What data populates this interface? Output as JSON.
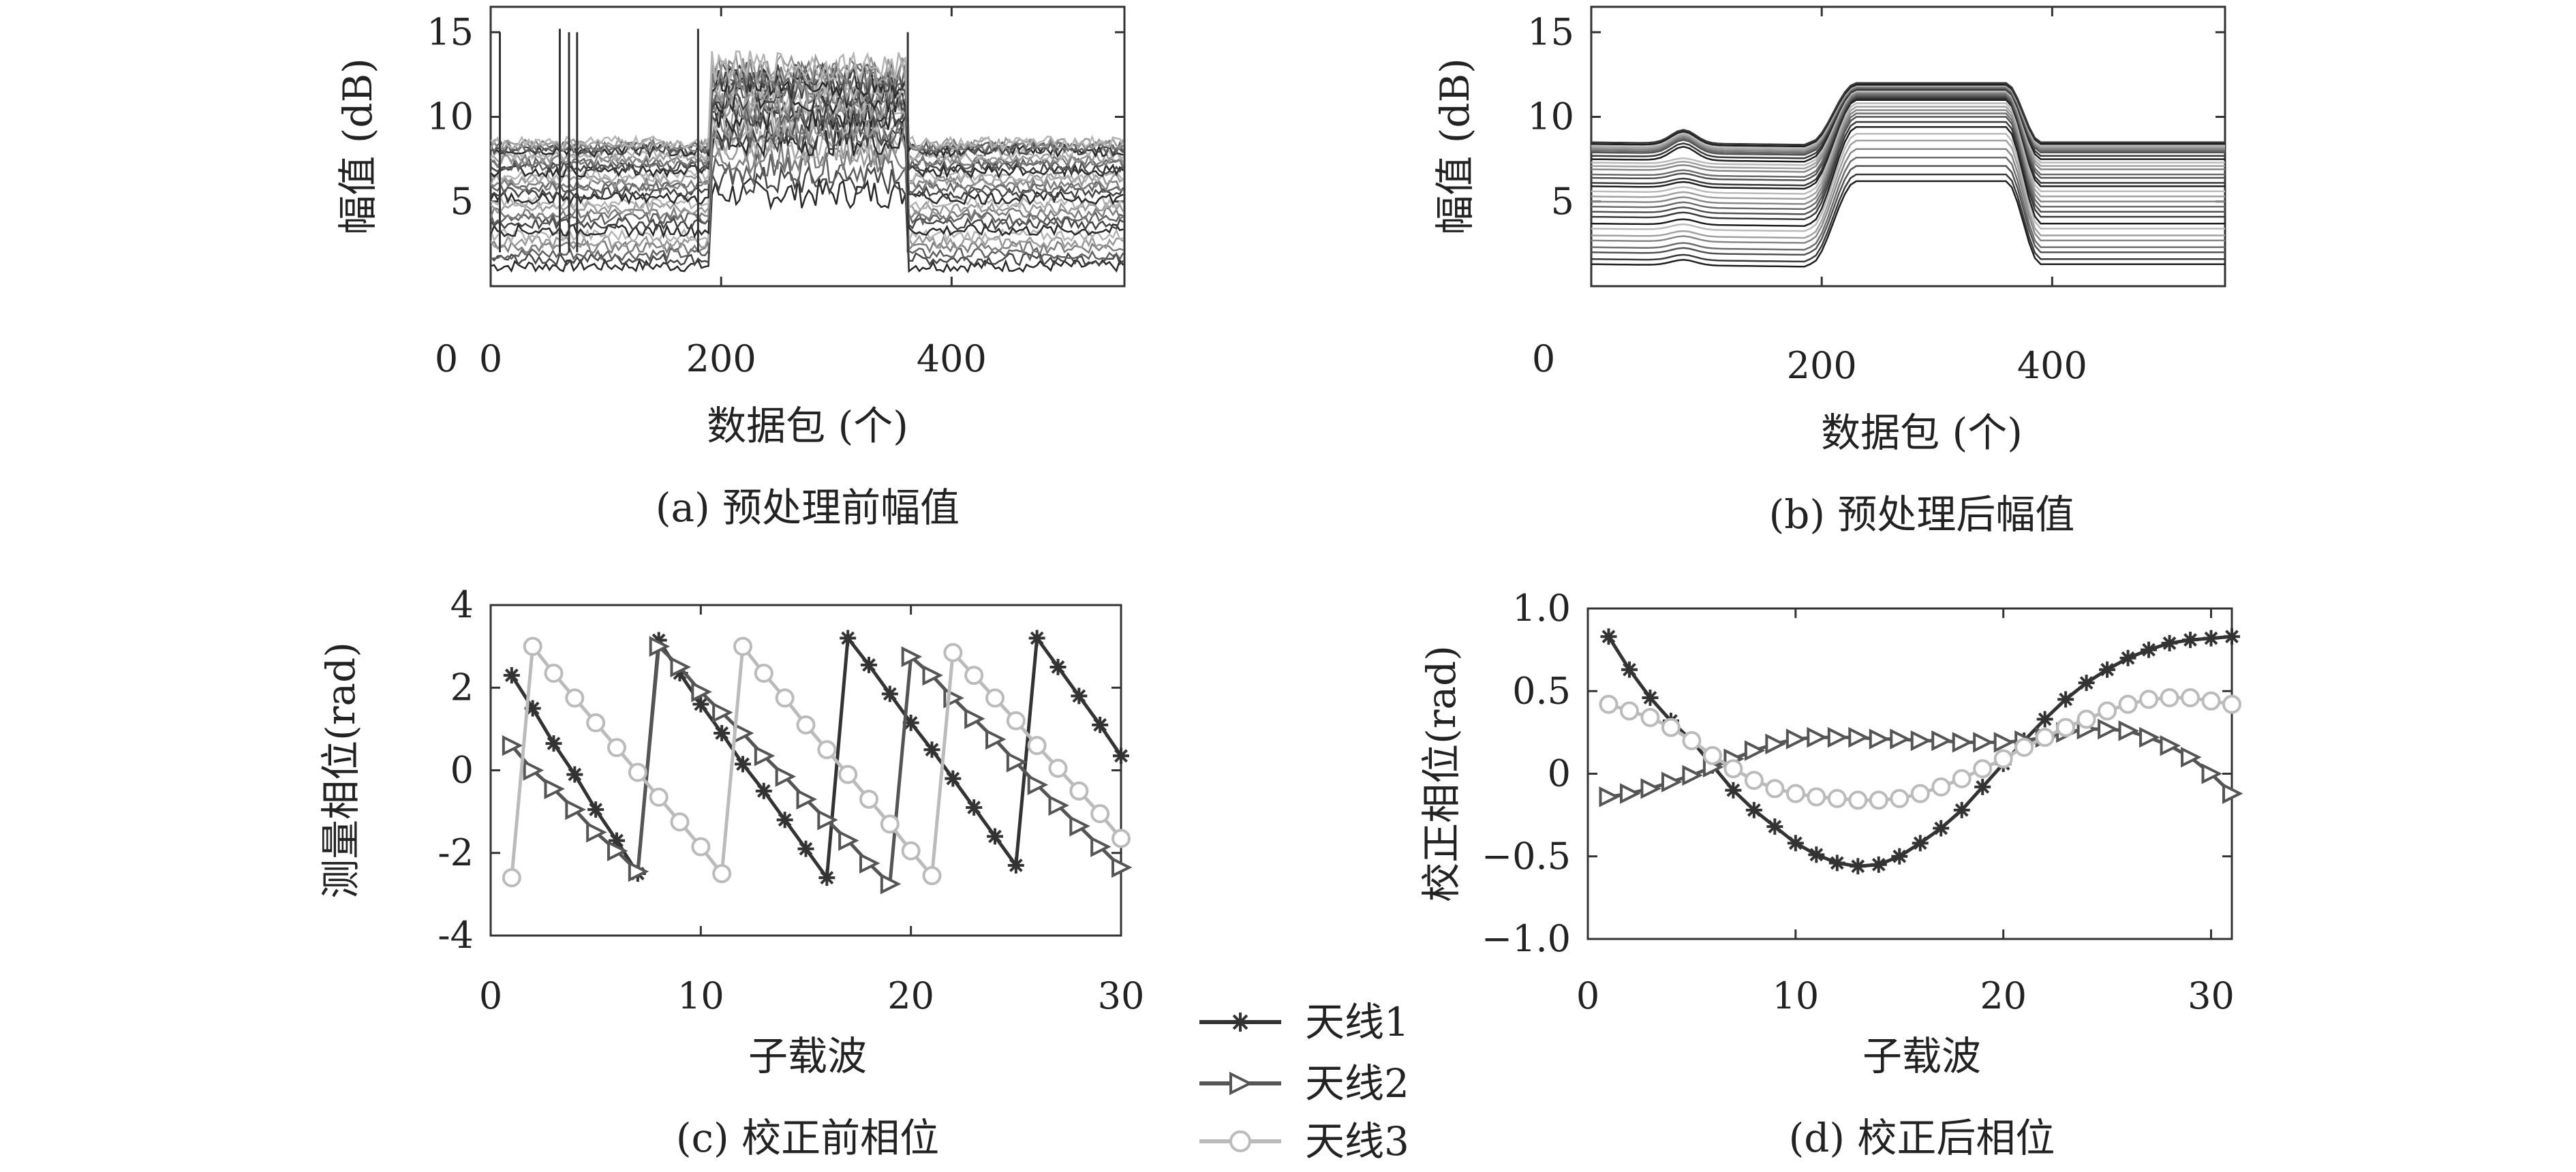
{
  "chart_data": [
    {
      "type": "line",
      "id": "a",
      "caption": "(a) 预处理前幅值",
      "xlabel": "数据包 (个)",
      "ylabel": "幅值 (dB)",
      "xlim": [
        0,
        550
      ],
      "ylim": [
        0,
        16.5
      ],
      "xticks": [
        0,
        200,
        400
      ],
      "yticks": [
        5,
        10,
        15
      ],
      "x_zero_label": "0",
      "segments": [
        {
          "x_range": [
            0,
            190
          ],
          "level": "low"
        },
        {
          "x_range": [
            190,
            362
          ],
          "level": "high"
        },
        {
          "x_range": [
            362,
            550
          ],
          "level": "low"
        }
      ],
      "series_count": 30,
      "low_levels_db": [
        1.2,
        1.6,
        1.9,
        2.3,
        2.6,
        3.0,
        3.3,
        3.7,
        4.0,
        4.3,
        4.6,
        4.9,
        5.2,
        5.5,
        5.8,
        6.0,
        6.3,
        6.5,
        6.8,
        7.0,
        7.2,
        7.4,
        7.6,
        7.8,
        8.0,
        8.1,
        8.2,
        8.3,
        8.4,
        8.5
      ],
      "high_levels_db": [
        5.5,
        6.2,
        7.0,
        7.6,
        8.0,
        8.3,
        8.6,
        8.9,
        9.2,
        9.4,
        9.6,
        9.8,
        10.0,
        10.2,
        10.4,
        10.6,
        10.8,
        11.0,
        11.1,
        11.3,
        11.5,
        11.6,
        11.8,
        11.9,
        12.0,
        12.2,
        12.4,
        12.6,
        12.8,
        13.0
      ],
      "spikes": [
        {
          "x": 8,
          "y": 15.0
        },
        {
          "x": 60,
          "y": 15.2
        },
        {
          "x": 68,
          "y": 15.0
        },
        {
          "x": 75,
          "y": 15.0
        },
        {
          "x": 180,
          "y": 15.2
        },
        {
          "x": 362,
          "y": 15.0
        }
      ],
      "grid": false
    },
    {
      "type": "line",
      "id": "b",
      "caption": "(b) 预处理后幅值",
      "xlabel": "数据包 (个)",
      "ylabel": "幅值 (dB)",
      "xlim": [
        0,
        550
      ],
      "ylim": [
        0,
        16.5
      ],
      "xticks": [
        200,
        400
      ],
      "yticks": [
        5,
        10,
        15
      ],
      "y_zero_label": "0",
      "transitions": [
        [
          190,
          230
        ],
        [
          360,
          390
        ]
      ],
      "bump": {
        "x": 80,
        "height_db": 0.8
      },
      "series_count": 30,
      "low_levels_db": [
        1.3,
        1.6,
        2.0,
        2.3,
        2.7,
        3.0,
        3.4,
        3.7,
        4.1,
        4.4,
        4.7,
        5.0,
        5.3,
        5.6,
        5.9,
        6.1,
        6.4,
        6.6,
        6.9,
        7.1,
        7.3,
        7.5,
        7.7,
        7.9,
        8.0,
        8.1,
        8.2,
        8.3,
        8.4,
        8.5
      ],
      "high_levels_db": [
        6.2,
        6.6,
        7.1,
        7.6,
        8.1,
        8.6,
        9.0,
        9.4,
        9.7,
        10.0,
        10.2,
        10.4,
        10.6,
        10.8,
        11.0,
        11.1,
        11.2,
        11.3,
        11.4,
        11.5,
        11.5,
        11.6,
        11.6,
        11.7,
        11.7,
        11.8,
        11.8,
        11.9,
        11.9,
        12.0
      ],
      "grid": false
    },
    {
      "type": "line",
      "id": "c",
      "caption": "(c) 校正前相位",
      "xlabel": "子载波",
      "ylabel": "测量相位(rad)",
      "xlim": [
        0,
        30
      ],
      "ylim": [
        -4,
        4
      ],
      "xticks": [
        0,
        10,
        20,
        30
      ],
      "yticks": [
        -4,
        -2,
        0,
        2,
        4
      ],
      "grid": false,
      "series": [
        {
          "name": "天线1",
          "marker": "asterisk",
          "color": "#333333",
          "x": [
            1,
            2,
            3,
            4,
            5,
            6,
            7,
            8,
            9,
            10,
            11,
            12,
            13,
            14,
            15,
            16,
            17,
            18,
            19,
            20,
            21,
            22,
            23,
            24,
            25,
            26,
            27,
            28,
            29,
            30
          ],
          "y": [
            2.3,
            1.5,
            0.65,
            -0.1,
            -0.95,
            -1.7,
            -2.5,
            3.15,
            2.35,
            1.6,
            0.9,
            0.15,
            -0.5,
            -1.2,
            -1.9,
            -2.6,
            3.2,
            2.55,
            1.85,
            1.15,
            0.5,
            -0.2,
            -0.9,
            -1.6,
            -2.3,
            3.2,
            2.5,
            1.8,
            1.1,
            0.35
          ]
        },
        {
          "name": "天线2",
          "marker": "triangle-right",
          "color": "#555555",
          "x": [
            1,
            2,
            3,
            4,
            5,
            6,
            7,
            8,
            9,
            10,
            11,
            12,
            13,
            14,
            15,
            16,
            17,
            18,
            19,
            20,
            21,
            22,
            23,
            24,
            25,
            26,
            27,
            28,
            29,
            30
          ],
          "y": [
            0.6,
            0.0,
            -0.45,
            -0.95,
            -1.5,
            -1.95,
            -2.45,
            3.0,
            2.5,
            1.9,
            1.4,
            0.9,
            0.35,
            -0.15,
            -0.7,
            -1.2,
            -1.7,
            -2.25,
            -2.75,
            2.75,
            2.3,
            1.75,
            1.25,
            0.75,
            0.2,
            -0.35,
            -0.85,
            -1.35,
            -1.85,
            -2.35
          ]
        },
        {
          "name": "天线3",
          "marker": "circle",
          "color": "#bbbbbb",
          "x": [
            1,
            2,
            3,
            4,
            5,
            6,
            7,
            8,
            9,
            10,
            11,
            12,
            13,
            14,
            15,
            16,
            17,
            18,
            19,
            20,
            21,
            22,
            23,
            24,
            25,
            26,
            27,
            28,
            29,
            30
          ],
          "y": [
            -2.6,
            3.0,
            2.35,
            1.75,
            1.15,
            0.55,
            -0.05,
            -0.65,
            -1.25,
            -1.85,
            -2.5,
            3.0,
            2.35,
            1.75,
            1.1,
            0.5,
            -0.1,
            -0.7,
            -1.3,
            -1.95,
            -2.55,
            2.85,
            2.3,
            1.75,
            1.2,
            0.6,
            0.05,
            -0.5,
            -1.05,
            -1.65
          ]
        }
      ]
    },
    {
      "type": "line",
      "id": "d",
      "caption": "(d) 校正后相位",
      "xlabel": "子载波",
      "ylabel": "校正相位(rad)",
      "xlim": [
        0,
        31
      ],
      "ylim": [
        -1.0,
        1.0
      ],
      "xticks": [
        0,
        10,
        20,
        30
      ],
      "yticks": [
        -1.0,
        -0.5,
        0,
        0.5,
        1.0
      ],
      "ytick_labels": [
        "−1.0",
        "−0.5",
        "0",
        "0.5",
        "1.0"
      ],
      "grid": false,
      "series": [
        {
          "name": "天线1",
          "marker": "asterisk",
          "color": "#333333",
          "x": [
            1,
            2,
            3,
            4,
            5,
            6,
            7,
            8,
            9,
            10,
            11,
            12,
            13,
            14,
            15,
            16,
            17,
            18,
            19,
            20,
            21,
            22,
            23,
            24,
            25,
            26,
            27,
            28,
            29,
            30,
            31
          ],
          "y": [
            0.83,
            0.63,
            0.46,
            0.32,
            0.2,
            0.05,
            -0.1,
            -0.22,
            -0.32,
            -0.42,
            -0.49,
            -0.54,
            -0.56,
            -0.55,
            -0.5,
            -0.42,
            -0.33,
            -0.22,
            -0.08,
            0.06,
            0.2,
            0.33,
            0.45,
            0.55,
            0.63,
            0.7,
            0.75,
            0.79,
            0.81,
            0.82,
            0.83
          ]
        },
        {
          "name": "天线2",
          "marker": "triangle-right",
          "color": "#555555",
          "x": [
            1,
            2,
            3,
            4,
            5,
            6,
            7,
            8,
            9,
            10,
            11,
            12,
            13,
            14,
            15,
            16,
            17,
            18,
            19,
            20,
            21,
            22,
            23,
            24,
            25,
            26,
            27,
            28,
            29,
            30,
            31
          ],
          "y": [
            -0.14,
            -0.12,
            -0.09,
            -0.05,
            -0.01,
            0.04,
            0.09,
            0.14,
            0.18,
            0.21,
            0.22,
            0.22,
            0.22,
            0.21,
            0.21,
            0.2,
            0.2,
            0.19,
            0.19,
            0.19,
            0.2,
            0.22,
            0.25,
            0.27,
            0.27,
            0.26,
            0.22,
            0.17,
            0.1,
            0.0,
            -0.12
          ]
        },
        {
          "name": "天线3",
          "marker": "circle",
          "color": "#bbbbbb",
          "x": [
            1,
            2,
            3,
            4,
            5,
            6,
            7,
            8,
            9,
            10,
            11,
            12,
            13,
            14,
            15,
            16,
            17,
            18,
            19,
            20,
            21,
            22,
            23,
            24,
            25,
            26,
            27,
            28,
            29,
            30,
            31
          ],
          "y": [
            0.42,
            0.38,
            0.34,
            0.28,
            0.2,
            0.11,
            0.03,
            -0.04,
            -0.09,
            -0.12,
            -0.14,
            -0.15,
            -0.16,
            -0.16,
            -0.15,
            -0.12,
            -0.08,
            -0.03,
            0.03,
            0.09,
            0.16,
            0.22,
            0.28,
            0.33,
            0.38,
            0.42,
            0.45,
            0.46,
            0.46,
            0.44,
            0.42
          ]
        }
      ]
    }
  ],
  "legend": {
    "placement": "bottom-center",
    "entries": [
      {
        "label": "天线1",
        "marker": "asterisk",
        "color": "#333333"
      },
      {
        "label": "天线2",
        "marker": "triangle-right",
        "color": "#555555"
      },
      {
        "label": "天线3",
        "marker": "circle",
        "color": "#bbbbbb"
      }
    ]
  }
}
